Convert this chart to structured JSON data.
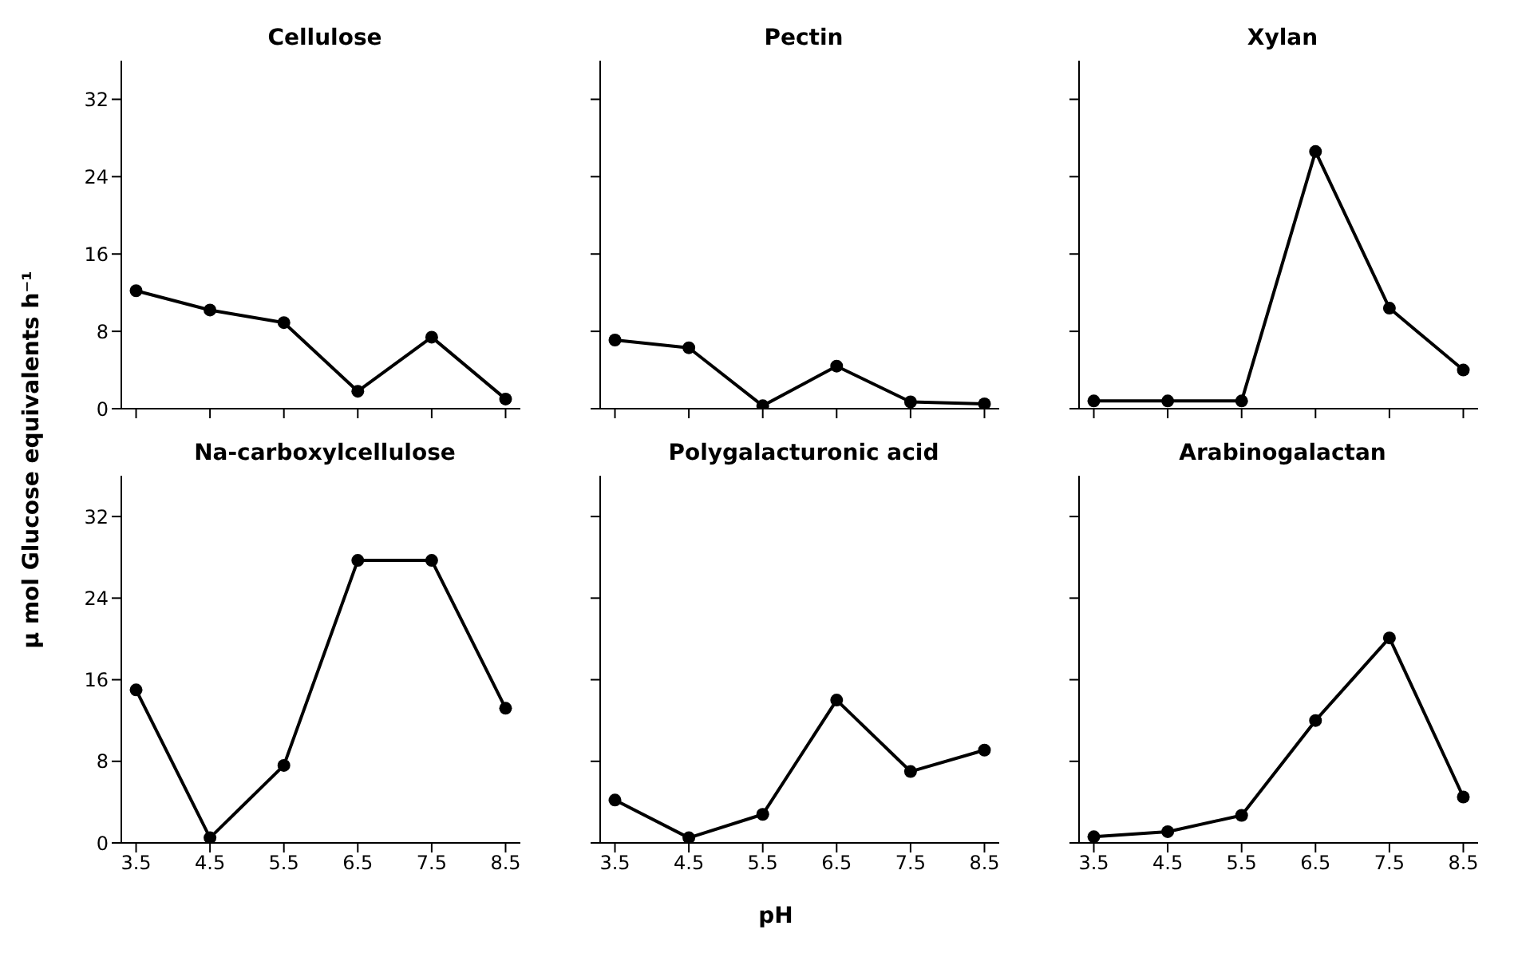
{
  "chart_data": [
    {
      "type": "line",
      "title": "Cellulose",
      "ylabel": "µ mol Glucose equivalents h⁻¹",
      "x": [
        3.5,
        4.5,
        5.5,
        6.5,
        7.5,
        8.5
      ],
      "series": [
        {
          "color": "#000000",
          "values": [
            12.2,
            10.2,
            8.9,
            1.8,
            7.4,
            1.0
          ]
        }
      ],
      "xlim": [
        3.3,
        8.7
      ],
      "xticks": [
        {
          "value": 3.5,
          "label": null
        },
        {
          "value": 4.5,
          "label": null
        },
        {
          "value": 5.5,
          "label": null
        },
        {
          "value": 6.5,
          "label": null
        },
        {
          "value": 7.5,
          "label": null
        },
        {
          "value": 8.5,
          "label": null
        }
      ],
      "ylim": [
        0,
        36
      ],
      "yticks": [
        0,
        8,
        16,
        24,
        32
      ],
      "marker": "circle",
      "tick_labels": "y"
    },
    {
      "type": "line",
      "title": "Pectin",
      "x": [
        3.5,
        4.5,
        5.5,
        6.5,
        7.5,
        8.5
      ],
      "series": [
        {
          "color": "#000000",
          "values": [
            7.1,
            6.3,
            0.3,
            4.4,
            0.7,
            0.5
          ]
        }
      ],
      "xlim": [
        3.3,
        8.7
      ],
      "xticks": [
        {
          "value": 3.5,
          "label": null
        },
        {
          "value": 4.5,
          "label": null
        },
        {
          "value": 5.5,
          "label": null
        },
        {
          "value": 6.5,
          "label": null
        },
        {
          "value": 7.5,
          "label": null
        },
        {
          "value": 8.5,
          "label": null
        }
      ],
      "ylim": [
        0,
        36
      ],
      "yticks": [
        {
          "value": 0,
          "label": null
        },
        {
          "value": 8,
          "label": null
        },
        {
          "value": 16,
          "label": null
        },
        {
          "value": 24,
          "label": null
        },
        {
          "value": 32,
          "label": null
        }
      ],
      "marker": "circle",
      "tick_labels": false
    },
    {
      "type": "line",
      "title": "Xylan",
      "x": [
        3.5,
        4.5,
        5.5,
        6.5,
        7.5,
        8.5
      ],
      "series": [
        {
          "color": "#000000",
          "values": [
            0.8,
            0.8,
            0.8,
            26.6,
            10.4,
            4.0
          ]
        }
      ],
      "xlim": [
        3.3,
        8.7
      ],
      "xticks": [
        {
          "value": 3.5,
          "label": null
        },
        {
          "value": 4.5,
          "label": null
        },
        {
          "value": 5.5,
          "label": null
        },
        {
          "value": 6.5,
          "label": null
        },
        {
          "value": 7.5,
          "label": null
        },
        {
          "value": 8.5,
          "label": null
        }
      ],
      "ylim": [
        0,
        36
      ],
      "yticks": [
        {
          "value": 0,
          "label": null
        },
        {
          "value": 8,
          "label": null
        },
        {
          "value": 16,
          "label": null
        },
        {
          "value": 24,
          "label": null
        },
        {
          "value": 32,
          "label": null
        }
      ],
      "marker": "circle",
      "tick_labels": false
    },
    {
      "type": "line",
      "title": "Na-carboxylcellulose",
      "x": [
        3.5,
        4.5,
        5.5,
        6.5,
        7.5,
        8.5
      ],
      "series": [
        {
          "color": "#000000",
          "values": [
            15.0,
            0.5,
            7.6,
            27.7,
            27.7,
            13.2
          ]
        }
      ],
      "xlim": [
        3.3,
        8.7
      ],
      "xticks": [
        3.5,
        4.5,
        5.5,
        6.5,
        7.5,
        8.5
      ],
      "ylim": [
        0,
        36
      ],
      "yticks": [
        0,
        8,
        16,
        24,
        32
      ],
      "marker": "circle"
    },
    {
      "type": "line",
      "title": "Polygalacturonic acid",
      "xlabel": "pH",
      "x": [
        3.5,
        4.5,
        5.5,
        6.5,
        7.5,
        8.5
      ],
      "series": [
        {
          "color": "#000000",
          "values": [
            4.2,
            0.5,
            2.8,
            14.0,
            7.0,
            9.1
          ]
        }
      ],
      "xlim": [
        3.3,
        8.7
      ],
      "xticks": [
        3.5,
        4.5,
        5.5,
        6.5,
        7.5,
        8.5
      ],
      "ylim": [
        0,
        36
      ],
      "yticks": [
        {
          "value": 0,
          "label": null
        },
        {
          "value": 8,
          "label": null
        },
        {
          "value": 16,
          "label": null
        },
        {
          "value": 24,
          "label": null
        },
        {
          "value": 32,
          "label": null
        }
      ],
      "marker": "circle",
      "tick_labels": "x"
    },
    {
      "type": "line",
      "title": "Arabinogalactan",
      "x": [
        3.5,
        4.5,
        5.5,
        6.5,
        7.5,
        8.5
      ],
      "series": [
        {
          "color": "#000000",
          "values": [
            0.6,
            1.1,
            2.7,
            12.0,
            20.1,
            4.5
          ]
        }
      ],
      "xlim": [
        3.3,
        8.7
      ],
      "xticks": [
        3.5,
        4.5,
        5.5,
        6.5,
        7.5,
        8.5
      ],
      "ylim": [
        0,
        36
      ],
      "yticks": [
        {
          "value": 0,
          "label": null
        },
        {
          "value": 8,
          "label": null
        },
        {
          "value": 16,
          "label": null
        },
        {
          "value": 24,
          "label": null
        },
        {
          "value": 32,
          "label": null
        }
      ],
      "marker": "circle",
      "tick_labels": "x"
    }
  ]
}
